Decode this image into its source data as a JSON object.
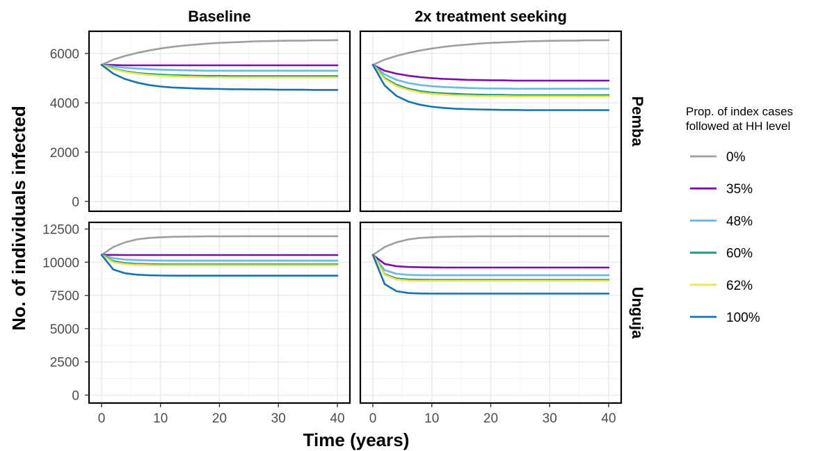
{
  "chart_data": {
    "type": "line",
    "xlabel": "Time (years)",
    "ylabel": "No. of individuals infected",
    "xlim": [
      0,
      40
    ],
    "x_ticks": [
      "0",
      "10",
      "20",
      "30",
      "40"
    ],
    "grid": true,
    "legend": {
      "title_lines": [
        "Prop. of index cases",
        "followed at HH level"
      ],
      "placement": "right",
      "entries": [
        {
          "label": "0%",
          "color": "#9e9e9e"
        },
        {
          "label": "35%",
          "color": "#7b0ea8"
        },
        {
          "label": "48%",
          "color": "#6cb6e4"
        },
        {
          "label": "60%",
          "color": "#169b7a"
        },
        {
          "label": "62%",
          "color": "#ede350"
        },
        {
          "label": "100%",
          "color": "#1273b3"
        }
      ]
    },
    "columns": [
      "Baseline",
      "2x treatment seeking"
    ],
    "rows": [
      {
        "name": "Pemba",
        "ylim": [
          -400,
          6900
        ],
        "y_ticks": [
          "0",
          "2000",
          "4000",
          "6000"
        ]
      },
      {
        "name": "Unguja",
        "ylim": [
          -600,
          13000
        ],
        "y_ticks": [
          "0",
          "2500",
          "5000",
          "7500",
          "10000",
          "12500"
        ]
      }
    ],
    "x": [
      0,
      2,
      4,
      6,
      8,
      10,
      12,
      14,
      16,
      18,
      20,
      22,
      24,
      26,
      28,
      30,
      32,
      34,
      36,
      38,
      40
    ],
    "panels": [
      {
        "row": "Pemba",
        "column": "Baseline",
        "series": [
          {
            "name": "0%",
            "values": [
              5540,
              5750,
              5900,
              6020,
              6120,
              6200,
              6270,
              6320,
              6360,
              6400,
              6430,
              6450,
              6470,
              6490,
              6500,
              6510,
              6520,
              6520,
              6530,
              6530,
              6540
            ]
          },
          {
            "name": "35%",
            "values": [
              5540,
              5530,
              5520,
              5520,
              5520,
              5520,
              5520,
              5520,
              5520,
              5520,
              5520,
              5520,
              5520,
              5520,
              5520,
              5520,
              5520,
              5520,
              5520,
              5520,
              5520
            ]
          },
          {
            "name": "48%",
            "values": [
              5540,
              5470,
              5420,
              5390,
              5360,
              5340,
              5330,
              5320,
              5310,
              5300,
              5300,
              5300,
              5300,
              5300,
              5300,
              5300,
              5300,
              5300,
              5300,
              5300,
              5300
            ]
          },
          {
            "name": "60%",
            "values": [
              5540,
              5380,
              5280,
              5210,
              5170,
              5140,
              5120,
              5110,
              5100,
              5090,
              5090,
              5080,
              5080,
              5080,
              5080,
              5080,
              5080,
              5080,
              5080,
              5080,
              5080
            ]
          },
          {
            "name": "62%",
            "values": [
              5540,
              5360,
              5250,
              5180,
              5130,
              5100,
              5080,
              5060,
              5050,
              5040,
              5040,
              5030,
              5030,
              5030,
              5030,
              5030,
              5030,
              5030,
              5030,
              5030,
              5030
            ]
          },
          {
            "name": "100%",
            "values": [
              5540,
              5180,
              4960,
              4820,
              4720,
              4660,
              4620,
              4600,
              4580,
              4570,
              4560,
              4550,
              4550,
              4540,
              4540,
              4530,
              4530,
              4530,
              4520,
              4520,
              4520
            ]
          }
        ]
      },
      {
        "row": "Pemba",
        "column": "2x treatment seeking",
        "series": [
          {
            "name": "0%",
            "values": [
              5540,
              5750,
              5900,
              6020,
              6120,
              6200,
              6270,
              6320,
              6360,
              6400,
              6430,
              6450,
              6470,
              6490,
              6500,
              6510,
              6520,
              6520,
              6530,
              6530,
              6540
            ]
          },
          {
            "name": "35%",
            "values": [
              5540,
              5300,
              5180,
              5100,
              5040,
              5000,
              4970,
              4950,
              4930,
              4920,
              4910,
              4910,
              4900,
              4900,
              4900,
              4900,
              4900,
              4900,
              4900,
              4900,
              4900
            ]
          },
          {
            "name": "48%",
            "values": [
              5540,
              5150,
              4930,
              4800,
              4720,
              4670,
              4640,
              4620,
              4600,
              4590,
              4580,
              4580,
              4570,
              4570,
              4570,
              4570,
              4570,
              4570,
              4570,
              4570,
              4570
            ]
          },
          {
            "name": "60%",
            "values": [
              5540,
              5000,
              4730,
              4570,
              4470,
              4410,
              4380,
              4360,
              4340,
              4330,
              4320,
              4320,
              4310,
              4310,
              4310,
              4310,
              4310,
              4310,
              4310,
              4310,
              4310
            ]
          },
          {
            "name": "62%",
            "values": [
              5540,
              4960,
              4680,
              4520,
              4420,
              4360,
              4330,
              4300,
              4290,
              4280,
              4270,
              4270,
              4260,
              4260,
              4260,
              4260,
              4260,
              4260,
              4260,
              4260,
              4260
            ]
          },
          {
            "name": "100%",
            "values": [
              5540,
              4700,
              4280,
              4050,
              3920,
              3840,
              3790,
              3760,
              3740,
              3730,
              3720,
              3710,
              3710,
              3700,
              3700,
              3700,
              3700,
              3700,
              3700,
              3700,
              3700
            ]
          }
        ]
      },
      {
        "row": "Unguja",
        "column": "Baseline",
        "series": [
          {
            "name": "0%",
            "values": [
              10550,
              11150,
              11500,
              11720,
              11830,
              11880,
              11910,
              11930,
              11940,
              11950,
              11950,
              11950,
              11960,
              11960,
              11960,
              11960,
              11960,
              11960,
              11960,
              11960,
              11960
            ]
          },
          {
            "name": "35%",
            "values": [
              10550,
              10550,
              10540,
              10540,
              10540,
              10540,
              10540,
              10540,
              10540,
              10540,
              10540,
              10540,
              10540,
              10540,
              10540,
              10540,
              10540,
              10540,
              10540,
              10540,
              10540
            ]
          },
          {
            "name": "48%",
            "values": [
              10550,
              10300,
              10200,
              10160,
              10140,
              10130,
              10120,
              10120,
              10120,
              10120,
              10120,
              10120,
              10120,
              10120,
              10120,
              10120,
              10120,
              10120,
              10120,
              10120,
              10120
            ]
          },
          {
            "name": "60%",
            "values": [
              10550,
              10080,
              9930,
              9870,
              9850,
              9840,
              9840,
              9840,
              9840,
              9840,
              9840,
              9840,
              9840,
              9840,
              9840,
              9840,
              9840,
              9840,
              9840,
              9840,
              9840
            ]
          },
          {
            "name": "62%",
            "values": [
              10550,
              10000,
              9860,
              9800,
              9780,
              9770,
              9770,
              9770,
              9770,
              9770,
              9770,
              9770,
              9770,
              9770,
              9770,
              9770,
              9770,
              9770,
              9770,
              9770,
              9770
            ]
          },
          {
            "name": "100%",
            "values": [
              10550,
              9450,
              9170,
              9060,
              9020,
              9000,
              8990,
              8990,
              8990,
              8990,
              8990,
              8990,
              8990,
              8990,
              8990,
              8990,
              8990,
              8990,
              8990,
              8990,
              8990
            ]
          }
        ]
      },
      {
        "row": "Unguja",
        "column": "2x treatment seeking",
        "series": [
          {
            "name": "0%",
            "values": [
              10550,
              11150,
              11500,
              11720,
              11830,
              11880,
              11910,
              11930,
              11940,
              11950,
              11950,
              11950,
              11960,
              11960,
              11960,
              11960,
              11960,
              11960,
              11960,
              11960,
              11960
            ]
          },
          {
            "name": "35%",
            "values": [
              10550,
              9870,
              9700,
              9640,
              9620,
              9610,
              9600,
              9600,
              9600,
              9600,
              9600,
              9600,
              9600,
              9600,
              9600,
              9600,
              9600,
              9600,
              9600,
              9600,
              9600
            ]
          },
          {
            "name": "48%",
            "values": [
              10550,
              9400,
              9130,
              9050,
              9030,
              9020,
              9020,
              9020,
              9020,
              9020,
              9020,
              9020,
              9020,
              9020,
              9020,
              9020,
              9020,
              9020,
              9020,
              9020,
              9020
            ]
          },
          {
            "name": "60%",
            "values": [
              10550,
              9100,
              8780,
              8700,
              8680,
              8670,
              8670,
              8670,
              8670,
              8670,
              8670,
              8670,
              8670,
              8670,
              8670,
              8670,
              8670,
              8670,
              8670,
              8670,
              8670
            ]
          },
          {
            "name": "62%",
            "values": [
              10550,
              9050,
              8700,
              8620,
              8600,
              8600,
              8600,
              8600,
              8600,
              8600,
              8600,
              8600,
              8600,
              8600,
              8600,
              8600,
              8600,
              8600,
              8600,
              8600,
              8600
            ]
          },
          {
            "name": "100%",
            "values": [
              10550,
              8350,
              7820,
              7680,
              7650,
              7640,
              7640,
              7640,
              7640,
              7640,
              7640,
              7640,
              7640,
              7640,
              7640,
              7640,
              7640,
              7640,
              7640,
              7640,
              7640
            ]
          }
        ]
      }
    ]
  }
}
